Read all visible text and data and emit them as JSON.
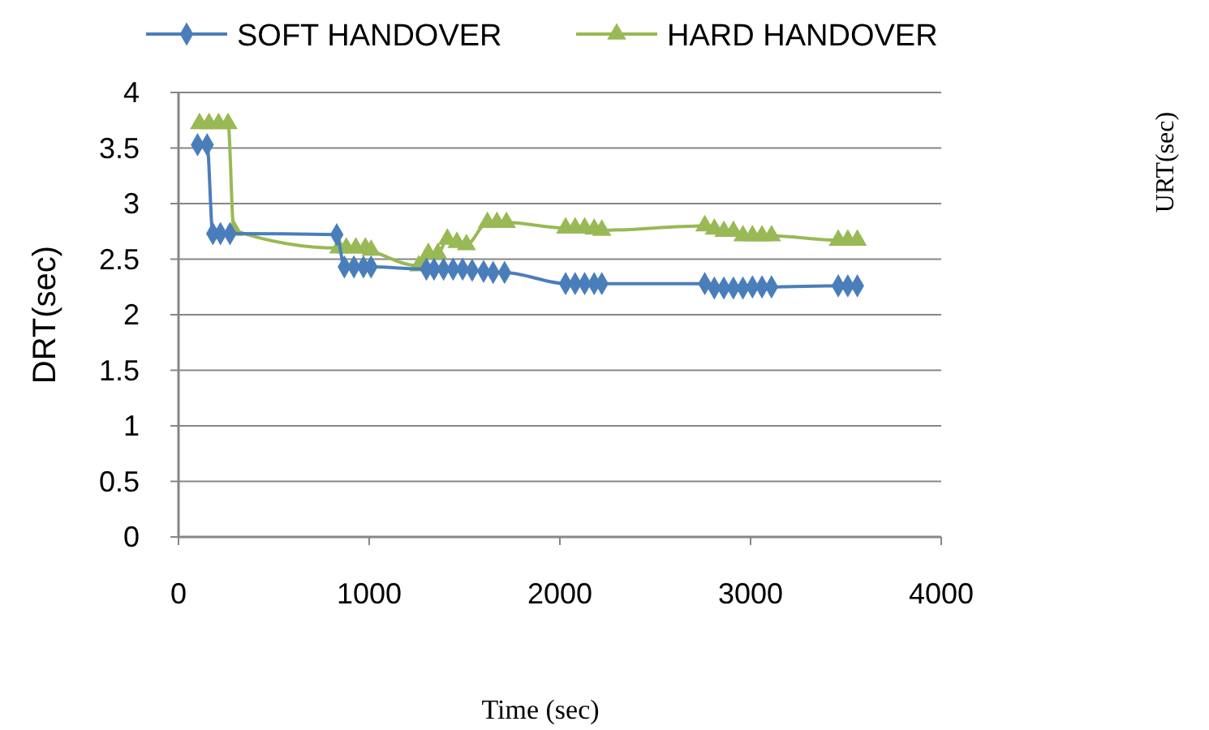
{
  "chart_data": {
    "type": "line",
    "xlabel": "Time (sec)",
    "ylabel": "DRT(sec)",
    "annotations": [
      "URT(sec)"
    ],
    "xlim": [
      0,
      4000
    ],
    "xticks": [
      0,
      1000,
      2000,
      3000,
      4000
    ],
    "ylim": [
      0,
      4
    ],
    "yticks": [
      0,
      0.5,
      1,
      1.5,
      2,
      2.5,
      3,
      3.5,
      4
    ],
    "grid": "y",
    "legend": "top",
    "series": [
      {
        "name": "SOFT HANDOVER",
        "color": "#4a7ebb",
        "marker": "diamond",
        "x": [
          100,
          150,
          180,
          220,
          270,
          830,
          870,
          920,
          970,
          1010,
          1300,
          1340,
          1390,
          1440,
          1490,
          1540,
          1600,
          1650,
          1710,
          2030,
          2080,
          2130,
          2180,
          2220,
          2760,
          2810,
          2860,
          2910,
          2960,
          3010,
          3060,
          3110,
          3460,
          3510,
          3560
        ],
        "values": [
          3.53,
          3.53,
          2.73,
          2.73,
          2.73,
          2.72,
          2.43,
          2.43,
          2.43,
          2.43,
          2.41,
          2.41,
          2.41,
          2.41,
          2.41,
          2.4,
          2.39,
          2.38,
          2.38,
          2.28,
          2.28,
          2.28,
          2.28,
          2.28,
          2.28,
          2.24,
          2.24,
          2.24,
          2.24,
          2.25,
          2.25,
          2.25,
          2.26,
          2.26,
          2.26
        ]
      },
      {
        "name": "HARD HANDOVER",
        "color": "#98b954",
        "marker": "triangle",
        "x": [
          110,
          160,
          210,
          260,
          290,
          840,
          880,
          930,
          980,
          1010,
          1260,
          1310,
          1360,
          1410,
          1460,
          1510,
          1620,
          1670,
          1720,
          2030,
          2080,
          2130,
          2180,
          2220,
          2760,
          2810,
          2860,
          2910,
          2960,
          3010,
          3060,
          3110,
          3460,
          3510,
          3560
        ],
        "values": [
          3.72,
          3.72,
          3.72,
          3.72,
          2.76,
          2.6,
          2.6,
          2.6,
          2.6,
          2.58,
          2.44,
          2.55,
          2.55,
          2.68,
          2.65,
          2.63,
          2.83,
          2.83,
          2.83,
          2.78,
          2.78,
          2.78,
          2.77,
          2.76,
          2.8,
          2.77,
          2.75,
          2.75,
          2.71,
          2.71,
          2.71,
          2.71,
          2.67,
          2.67,
          2.67
        ]
      }
    ]
  }
}
